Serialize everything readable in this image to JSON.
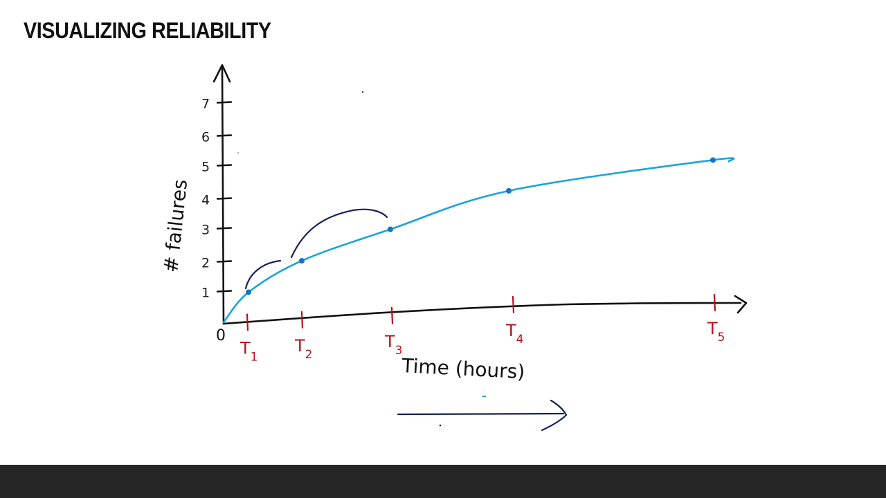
{
  "slide": {
    "title": "VISUALIZING RELIABILITY"
  },
  "chart_data": {
    "type": "line",
    "title": "",
    "xlabel": "Time (hours)",
    "ylabel": "# failures",
    "origin_label": "0",
    "categories": [
      "T1",
      "T2",
      "T3",
      "T4",
      "T5"
    ],
    "x_tick_labels": [
      {
        "main": "T",
        "sub": "1"
      },
      {
        "main": "T",
        "sub": "2"
      },
      {
        "main": "T",
        "sub": "3"
      },
      {
        "main": "T",
        "sub": "4"
      },
      {
        "main": "T",
        "sub": "5"
      }
    ],
    "y_ticks": [
      1,
      2,
      3,
      4,
      5,
      6,
      7
    ],
    "y_tick_labels": [
      "1",
      "2",
      "3",
      "4",
      "5",
      "6",
      "7"
    ],
    "ylim": [
      0,
      7.5
    ],
    "values": [
      1,
      2,
      3,
      4.2,
      5.2
    ],
    "grid": false,
    "colors": {
      "curve": "#1aa3dc",
      "points": "#1476c4",
      "axes": "#111111",
      "x_ticks": "#b3121b",
      "annotations": "#16205a"
    }
  }
}
